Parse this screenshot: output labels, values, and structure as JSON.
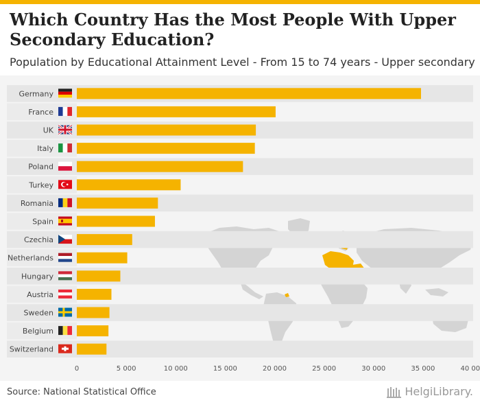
{
  "header": {
    "title": "Which Country Has the Most People With Upper Secondary Education?",
    "subtitle": "Population by Educational Attainment Level - From 15 to 74 years - Upper secondary"
  },
  "footer": {
    "source": "Source: National Statistical Office",
    "logo": "HelgiLibrary."
  },
  "colors": {
    "bar": "#f5b300",
    "band": "#e6e6e6",
    "map_land": "#d4d4d4",
    "map_highlight": "#f5b300"
  },
  "chart_data": {
    "type": "bar",
    "orientation": "horizontal",
    "title": "Which Country Has the Most People With Upper Secondary Education?",
    "subtitle": "Population by Educational Attainment Level - From 15 to 74 years - Upper secondary",
    "categories": [
      "Germany",
      "France",
      "UK",
      "Italy",
      "Poland",
      "Turkey",
      "Romania",
      "Spain",
      "Czechia",
      "Netherlands",
      "Hungary",
      "Austria",
      "Sweden",
      "Belgium",
      "Switzerland"
    ],
    "values": [
      34800,
      20100,
      18100,
      18000,
      16800,
      10500,
      8200,
      7900,
      5600,
      5100,
      4400,
      3500,
      3300,
      3200,
      3000
    ],
    "xlim": [
      0,
      40000
    ],
    "xticks": [
      0,
      5000,
      10000,
      15000,
      20000,
      25000,
      30000,
      35000,
      40000
    ],
    "xtick_labels": [
      "0",
      "5 000",
      "10 000",
      "15 000",
      "20 000",
      "25 000",
      "30 000",
      "35 000",
      "40 000"
    ],
    "xlabel": "",
    "ylabel": ""
  }
}
